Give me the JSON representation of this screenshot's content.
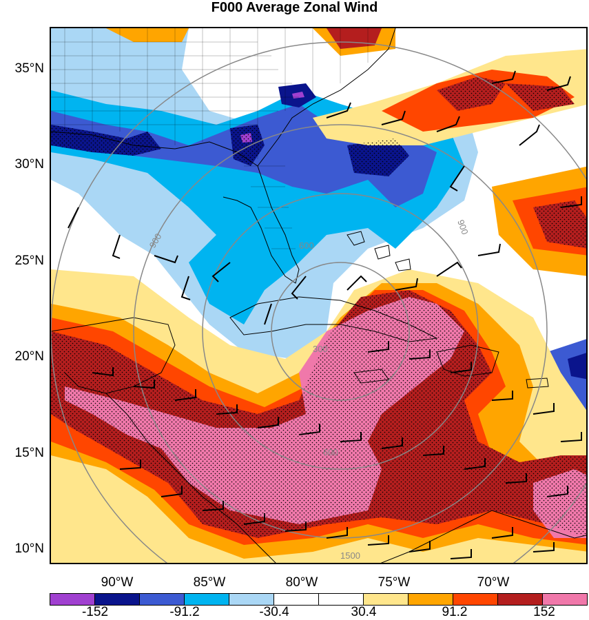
{
  "title": "F000 Average Zonal Wind",
  "lat_labels": [
    "35°N",
    "30°N",
    "25°N",
    "20°N",
    "15°N",
    "10°N"
  ],
  "lon_labels": [
    "90°W",
    "85°W",
    "80°W",
    "75°W",
    "70°W"
  ],
  "contour_labels": [
    "300",
    "600",
    "900",
    "1500"
  ],
  "colorbar": {
    "labels": [
      "-152",
      "-91.2",
      "-30.4",
      "30.4",
      "91.2",
      "152"
    ],
    "colors": [
      "#a040d0",
      "#0a148c",
      "#3c5ad2",
      "#00b4f0",
      "#aad7f5",
      "#ffffff",
      "#ffffff",
      "#ffe68c",
      "#ffa500",
      "#ff4600",
      "#b41e1e",
      "#f078aa"
    ]
  },
  "shading_colors": {
    "strong_negative": "#0a148c",
    "negative": "#3c5ad2",
    "moderate_negative": "#00b4f0",
    "weak_negative": "#aad7f5",
    "weak_positive": "#ffe68c",
    "positive": "#ffa500",
    "moderate_positive": "#ff4600",
    "strong_positive": "#b41e1e",
    "extreme_positive": "#f078aa",
    "extreme_negative": "#a040d0"
  }
}
